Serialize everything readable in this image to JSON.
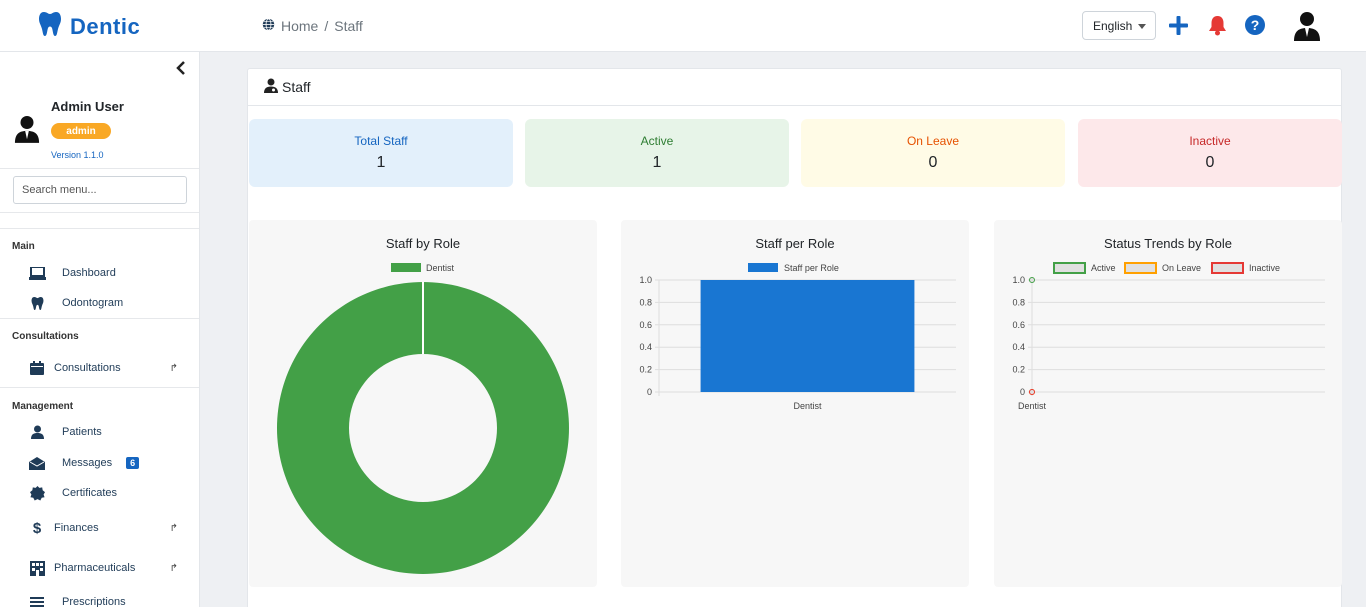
{
  "app": {
    "name": "Dentic"
  },
  "breadcrumb": {
    "home": "Home",
    "separator": "/",
    "current": "Staff"
  },
  "header": {
    "language": "English",
    "icons": [
      "plus-icon",
      "bell-icon",
      "help-icon",
      "user-avatar-icon"
    ],
    "colors": {
      "brand": "#1565c0",
      "bell": "#e53935"
    }
  },
  "sidebar": {
    "user": {
      "name": "Admin User",
      "role": "admin",
      "version": "Version 1.1.0"
    },
    "search_placeholder": "Search menu...",
    "sections": [
      {
        "title": "Main",
        "items": [
          {
            "label": "Dashboard",
            "icon": "laptop-icon"
          },
          {
            "label": "Odontogram",
            "icon": "tooth-icon"
          }
        ]
      },
      {
        "title": "Consultations",
        "items": [
          {
            "label": "Consultations",
            "icon": "calendar-icon",
            "expandable": true
          }
        ]
      },
      {
        "title": "Management",
        "items": [
          {
            "label": "Patients",
            "icon": "user-icon"
          },
          {
            "label": "Messages",
            "icon": "envelope-icon",
            "badge": "6"
          },
          {
            "label": "Certificates",
            "icon": "certificate-icon"
          },
          {
            "label": "Finances",
            "icon": "dollar-icon",
            "expandable": true
          },
          {
            "label": "Pharmaceuticals",
            "icon": "building-icon",
            "expandable": true
          },
          {
            "label": "Prescriptions",
            "icon": "list-icon"
          }
        ]
      }
    ]
  },
  "page": {
    "title": "Staff",
    "stats": [
      {
        "label": "Total Staff",
        "value": "1",
        "color": "#1565c0",
        "bg": "#e3f0fb"
      },
      {
        "label": "Active",
        "value": "1",
        "color": "#2e7d32",
        "bg": "#e7f4e8"
      },
      {
        "label": "On Leave",
        "value": "0",
        "color": "#e65100",
        "bg": "#fffbe6"
      },
      {
        "label": "Inactive",
        "value": "0",
        "color": "#c62828",
        "bg": "#fde8ea"
      }
    ]
  },
  "chart_data": [
    {
      "type": "pie",
      "title": "Staff by Role",
      "labels": [
        "Dentist"
      ],
      "values": [
        1
      ],
      "colors": [
        "#43a047"
      ],
      "legend": "top",
      "donut": true
    },
    {
      "type": "bar",
      "title": "Staff per Role",
      "categories": [
        "Dentist"
      ],
      "series": [
        {
          "name": "Staff per Role",
          "values": [
            1
          ],
          "color": "#1976d2"
        }
      ],
      "ylim": [
        0,
        1
      ],
      "yticks": [
        "1.0",
        "0.8",
        "0.6",
        "0.4",
        "0.2",
        "0"
      ],
      "legend": "top",
      "grid": true
    },
    {
      "type": "line",
      "title": "Status Trends by Role",
      "categories": [
        "Dentist"
      ],
      "series": [
        {
          "name": "Active",
          "values": [
            1
          ],
          "color": "#43a047"
        },
        {
          "name": "On Leave",
          "values": [
            0
          ],
          "color": "#ffa000"
        },
        {
          "name": "Inactive",
          "values": [
            0
          ],
          "color": "#e53935"
        }
      ],
      "ylim": [
        0,
        1
      ],
      "yticks": [
        "1.0",
        "0.8",
        "0.6",
        "0.4",
        "0.2",
        "0"
      ],
      "legend": "top",
      "grid": true
    }
  ]
}
